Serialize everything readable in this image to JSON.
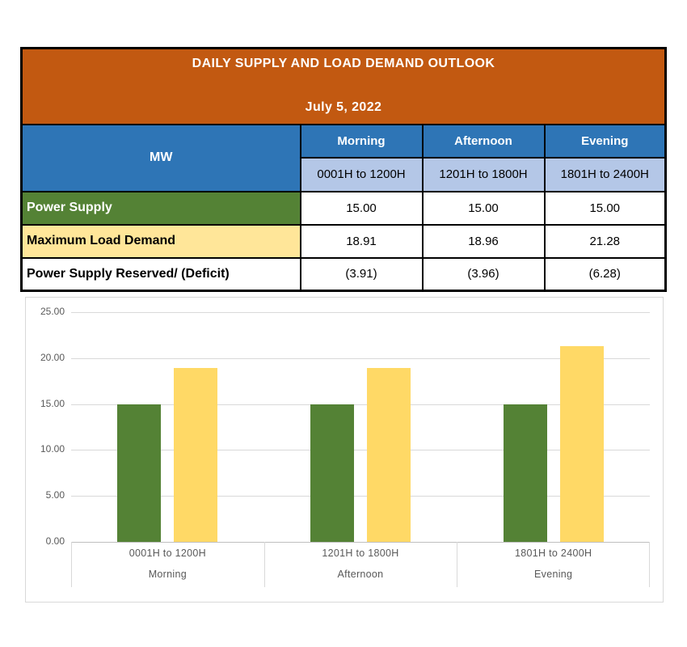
{
  "colors": {
    "banner_orange": "#C25911",
    "header_blue": "#2E75B6",
    "subheader_light_blue": "#B4C7E7",
    "supply_green": "#548235",
    "demand_light_yellow": "#FFE699",
    "white": "#FFFFFF",
    "bar_green": "#548235",
    "bar_yellow": "#FFD966",
    "grid_gray": "#D9D9D9",
    "axis_text_gray": "#595959"
  },
  "table": {
    "title": "DAILY SUPPLY AND LOAD DEMAND OUTLOOK",
    "date": "July 5, 2022",
    "unit_header": "MW",
    "periods": [
      {
        "label": "Morning",
        "time_range": "0001H to 1200H"
      },
      {
        "label": "Afternoon",
        "time_range": "1201H to 1800H"
      },
      {
        "label": "Evening",
        "time_range": "1801H to 2400H"
      }
    ],
    "rows": [
      {
        "label": "Power Supply",
        "values": [
          "15.00",
          "15.00",
          "15.00"
        ],
        "bg": "supply_green",
        "fg": "white"
      },
      {
        "label": "Maximum Load Demand",
        "values": [
          "18.91",
          "18.96",
          "21.28"
        ],
        "bg": "demand_light_yellow",
        "fg": "black"
      },
      {
        "label": "Power Supply Reserved/ (Deficit)",
        "values": [
          "(3.91)",
          "(3.96)",
          "(6.28)"
        ],
        "bg": "white",
        "fg": "black"
      }
    ]
  },
  "chart_data": {
    "type": "bar",
    "categories": [
      {
        "time_range": "0001H to 1200H",
        "period": "Morning"
      },
      {
        "time_range": "1201H to 1800H",
        "period": "Afternoon"
      },
      {
        "time_range": "1801H to 2400H",
        "period": "Evening"
      }
    ],
    "series": [
      {
        "name": "Power Supply",
        "color_key": "bar_green",
        "values": [
          15.0,
          15.0,
          15.0
        ]
      },
      {
        "name": "Maximum Load Demand",
        "color_key": "bar_yellow",
        "values": [
          18.91,
          18.96,
          21.28
        ]
      }
    ],
    "ylabel": "",
    "xlabel": "",
    "ylim": [
      0,
      25
    ],
    "y_ticks": [
      "25.00",
      "20.00",
      "15.00",
      "10.00",
      "5.00",
      "0.00"
    ],
    "grid": true,
    "legend_position": "none"
  }
}
